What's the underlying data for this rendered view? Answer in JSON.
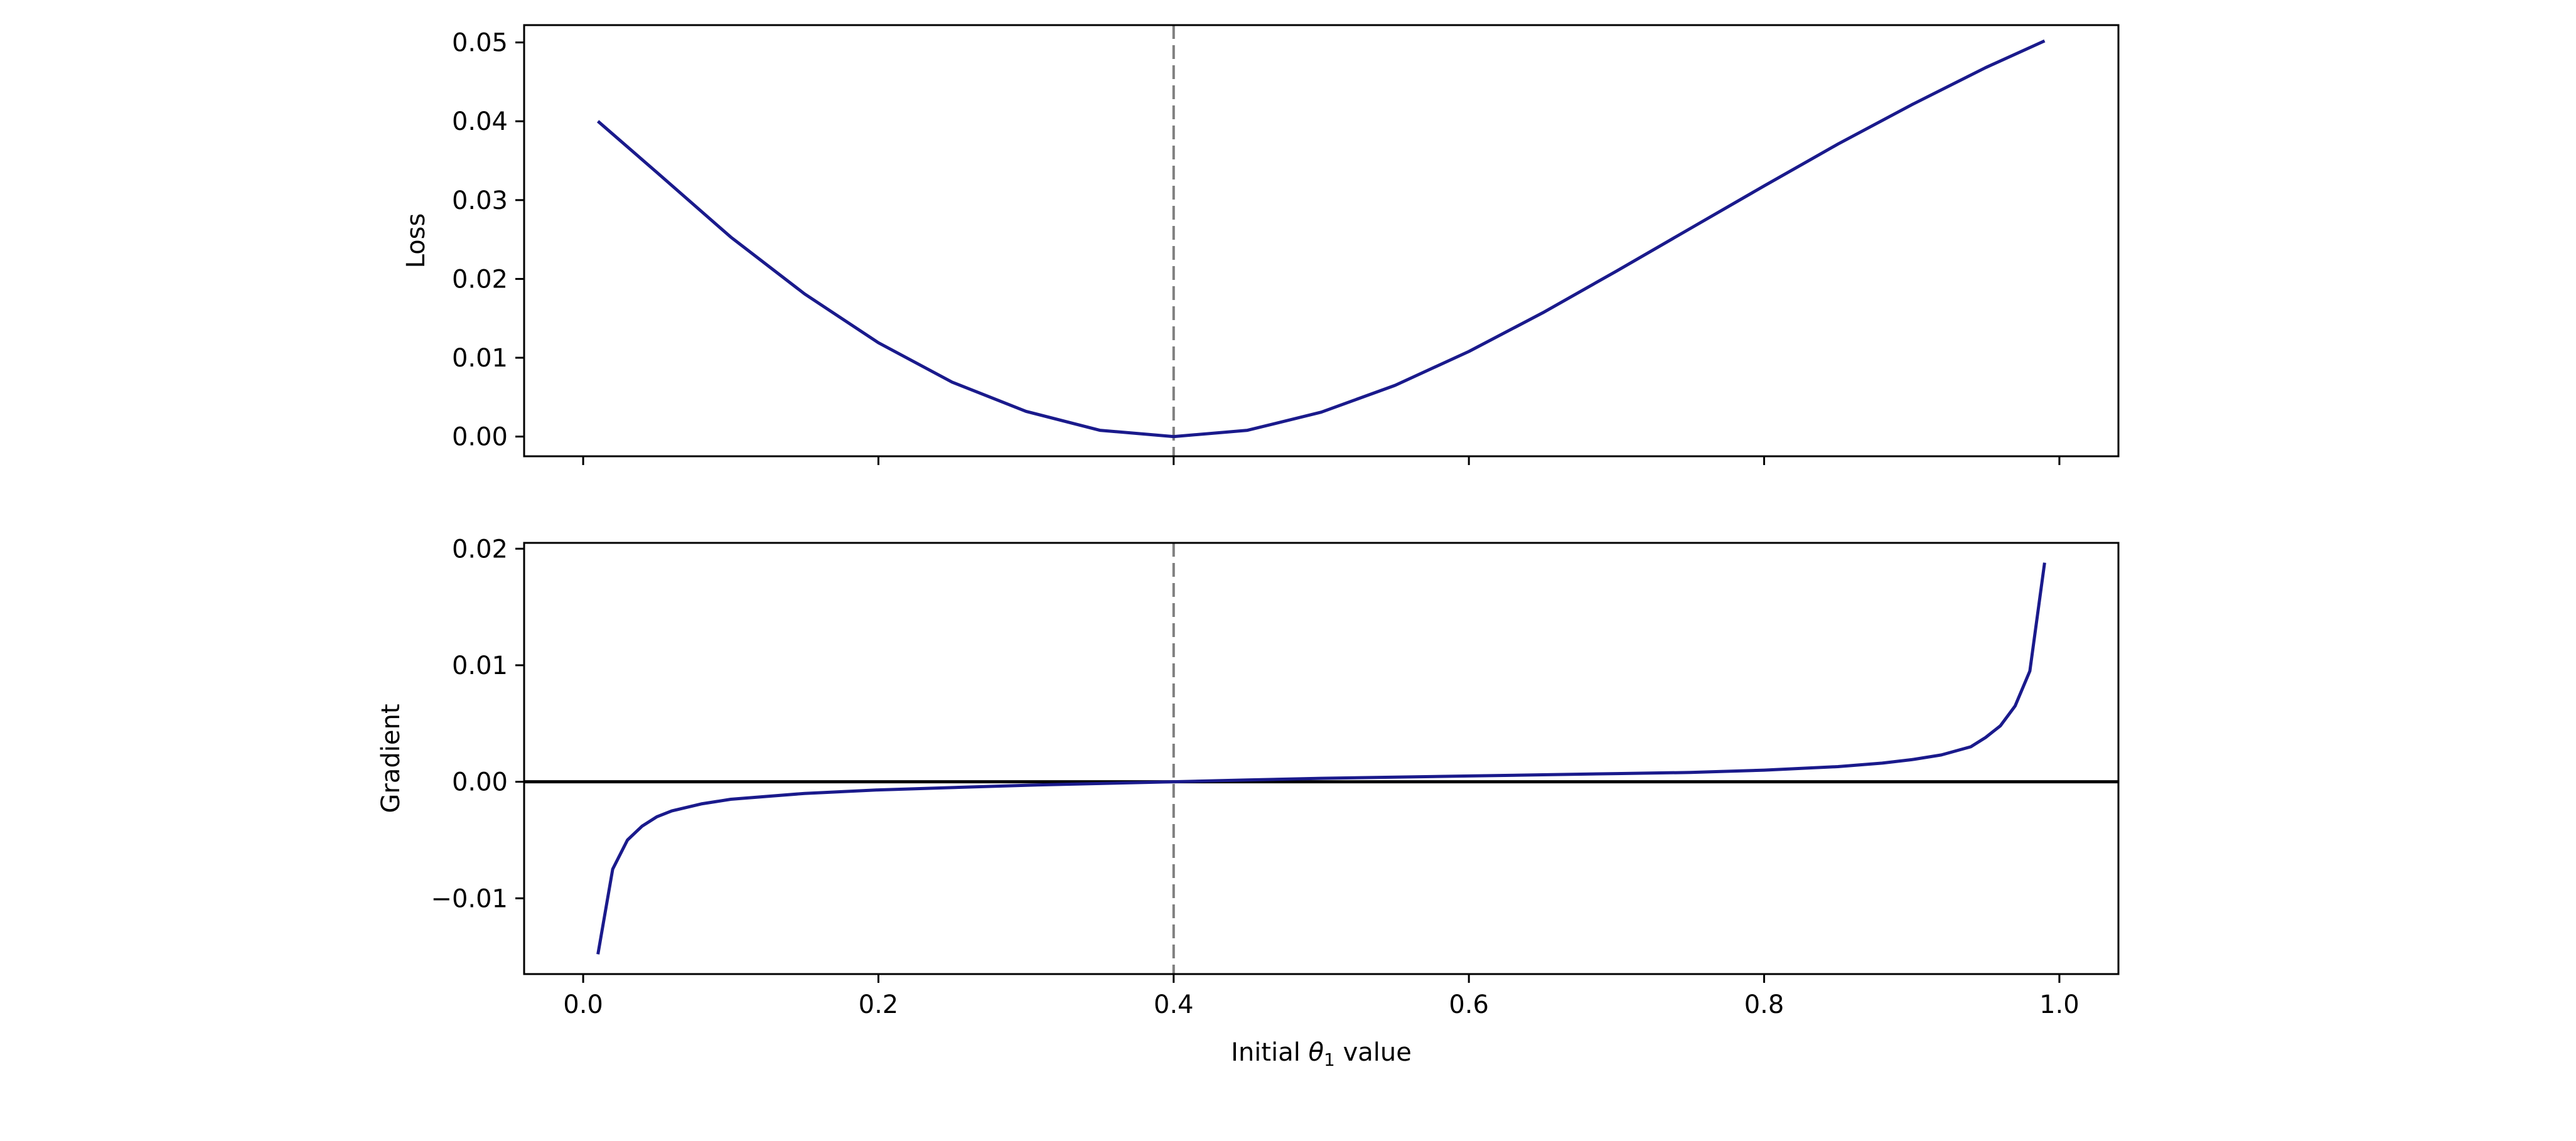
{
  "chart_data": [
    {
      "type": "line",
      "title": "",
      "xlabel": "",
      "ylabel": "Loss",
      "xlim": [
        -0.04,
        1.04
      ],
      "ylim": [
        -0.0025,
        0.0522
      ],
      "xticks": [
        0.0,
        0.2,
        0.4,
        0.6,
        0.8,
        1.0
      ],
      "xtick_labels": [
        "",
        "",
        "",
        "",
        "",
        ""
      ],
      "yticks": [
        0.0,
        0.01,
        0.02,
        0.03,
        0.04,
        0.05
      ],
      "ytick_labels": [
        "0.00",
        "0.01",
        "0.02",
        "0.03",
        "0.04",
        "0.05"
      ],
      "grid": false,
      "vline": {
        "x": 0.4,
        "color": "#808080",
        "style": "dashed"
      },
      "series": [
        {
          "color": "#1a1a8c",
          "x": [
            0.01,
            0.05,
            0.1,
            0.15,
            0.2,
            0.25,
            0.3,
            0.35,
            0.4,
            0.45,
            0.5,
            0.55,
            0.6,
            0.65,
            0.7,
            0.75,
            0.8,
            0.85,
            0.9,
            0.95,
            0.99
          ],
          "y": [
            0.04,
            0.0335,
            0.0253,
            0.0181,
            0.0119,
            0.0069,
            0.0032,
            0.0008,
            0.0,
            0.0008,
            0.0031,
            0.0065,
            0.0108,
            0.0157,
            0.021,
            0.0264,
            0.0318,
            0.0371,
            0.0421,
            0.0468,
            0.0502
          ]
        }
      ]
    },
    {
      "type": "line",
      "title": "",
      "xlabel": "Initial θ₁ value",
      "ylabel": "Gradient",
      "xlim": [
        -0.04,
        1.04
      ],
      "ylim": [
        -0.0165,
        0.0205
      ],
      "xticks": [
        0.0,
        0.2,
        0.4,
        0.6,
        0.8,
        1.0
      ],
      "xtick_labels": [
        "0.0",
        "0.2",
        "0.4",
        "0.6",
        "0.8",
        "1.0"
      ],
      "yticks": [
        -0.01,
        0.0,
        0.01,
        0.02
      ],
      "ytick_labels": [
        "−0.01",
        "0.00",
        "0.01",
        "0.02"
      ],
      "grid": false,
      "vline": {
        "x": 0.4,
        "color": "#808080",
        "style": "dashed"
      },
      "hline": {
        "y": 0.0,
        "color": "#000000",
        "style": "solid"
      },
      "series": [
        {
          "color": "#1a1a8c",
          "x": [
            0.01,
            0.02,
            0.03,
            0.04,
            0.05,
            0.06,
            0.08,
            0.1,
            0.15,
            0.2,
            0.25,
            0.3,
            0.35,
            0.4,
            0.45,
            0.5,
            0.55,
            0.6,
            0.65,
            0.7,
            0.75,
            0.8,
            0.85,
            0.88,
            0.9,
            0.92,
            0.94,
            0.95,
            0.96,
            0.97,
            0.98,
            0.99
          ],
          "y": [
            -0.0148,
            -0.0075,
            -0.005,
            -0.0038,
            -0.003,
            -0.0025,
            -0.0019,
            -0.0015,
            -0.001,
            -0.0007,
            -0.0005,
            -0.0003,
            -0.00015,
            0.0,
            0.00015,
            0.0003,
            0.0004,
            0.0005,
            0.0006,
            0.0007,
            0.0008,
            0.001,
            0.0013,
            0.0016,
            0.0019,
            0.0023,
            0.003,
            0.0038,
            0.0048,
            0.0065,
            0.0095,
            0.0188
          ]
        }
      ]
    }
  ]
}
